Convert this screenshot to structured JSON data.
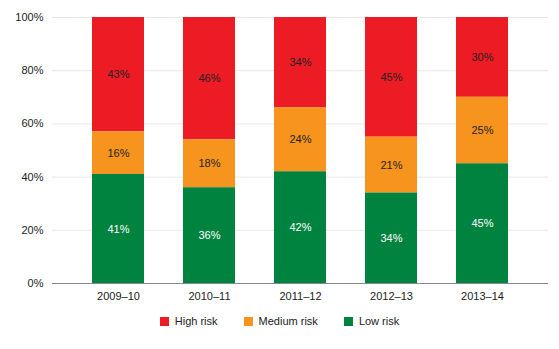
{
  "chart_data": {
    "type": "bar",
    "stacked": true,
    "data_labels": true,
    "grid": true,
    "legend": "bottom",
    "categories": [
      "2009–10",
      "2010–11",
      "2011–12",
      "2012–13",
      "2013–14"
    ],
    "series": [
      {
        "name": "High risk",
        "color": "#ed1c24",
        "values": [
          43,
          46,
          34,
          45,
          30
        ],
        "value_labels": [
          "43%",
          "46%",
          "34%",
          "45%",
          "30%"
        ]
      },
      {
        "name": "Medium risk",
        "color": "#f7941d",
        "values": [
          16,
          18,
          24,
          21,
          25
        ],
        "value_labels": [
          "16%",
          "18%",
          "24%",
          "21%",
          "25%"
        ]
      },
      {
        "name": "Low risk",
        "color": "#00833e",
        "values": [
          41,
          36,
          42,
          34,
          45
        ],
        "value_labels": [
          "41%",
          "36%",
          "42%",
          "34%",
          "45%"
        ]
      }
    ],
    "ylim": [
      0,
      100
    ],
    "yticks": [
      {
        "value": 0,
        "label": "0%"
      },
      {
        "value": 20,
        "label": "20%"
      },
      {
        "value": 40,
        "label": "40%"
      },
      {
        "value": 60,
        "label": "60%"
      },
      {
        "value": 80,
        "label": "80%"
      },
      {
        "value": 100,
        "label": "100%"
      }
    ]
  }
}
